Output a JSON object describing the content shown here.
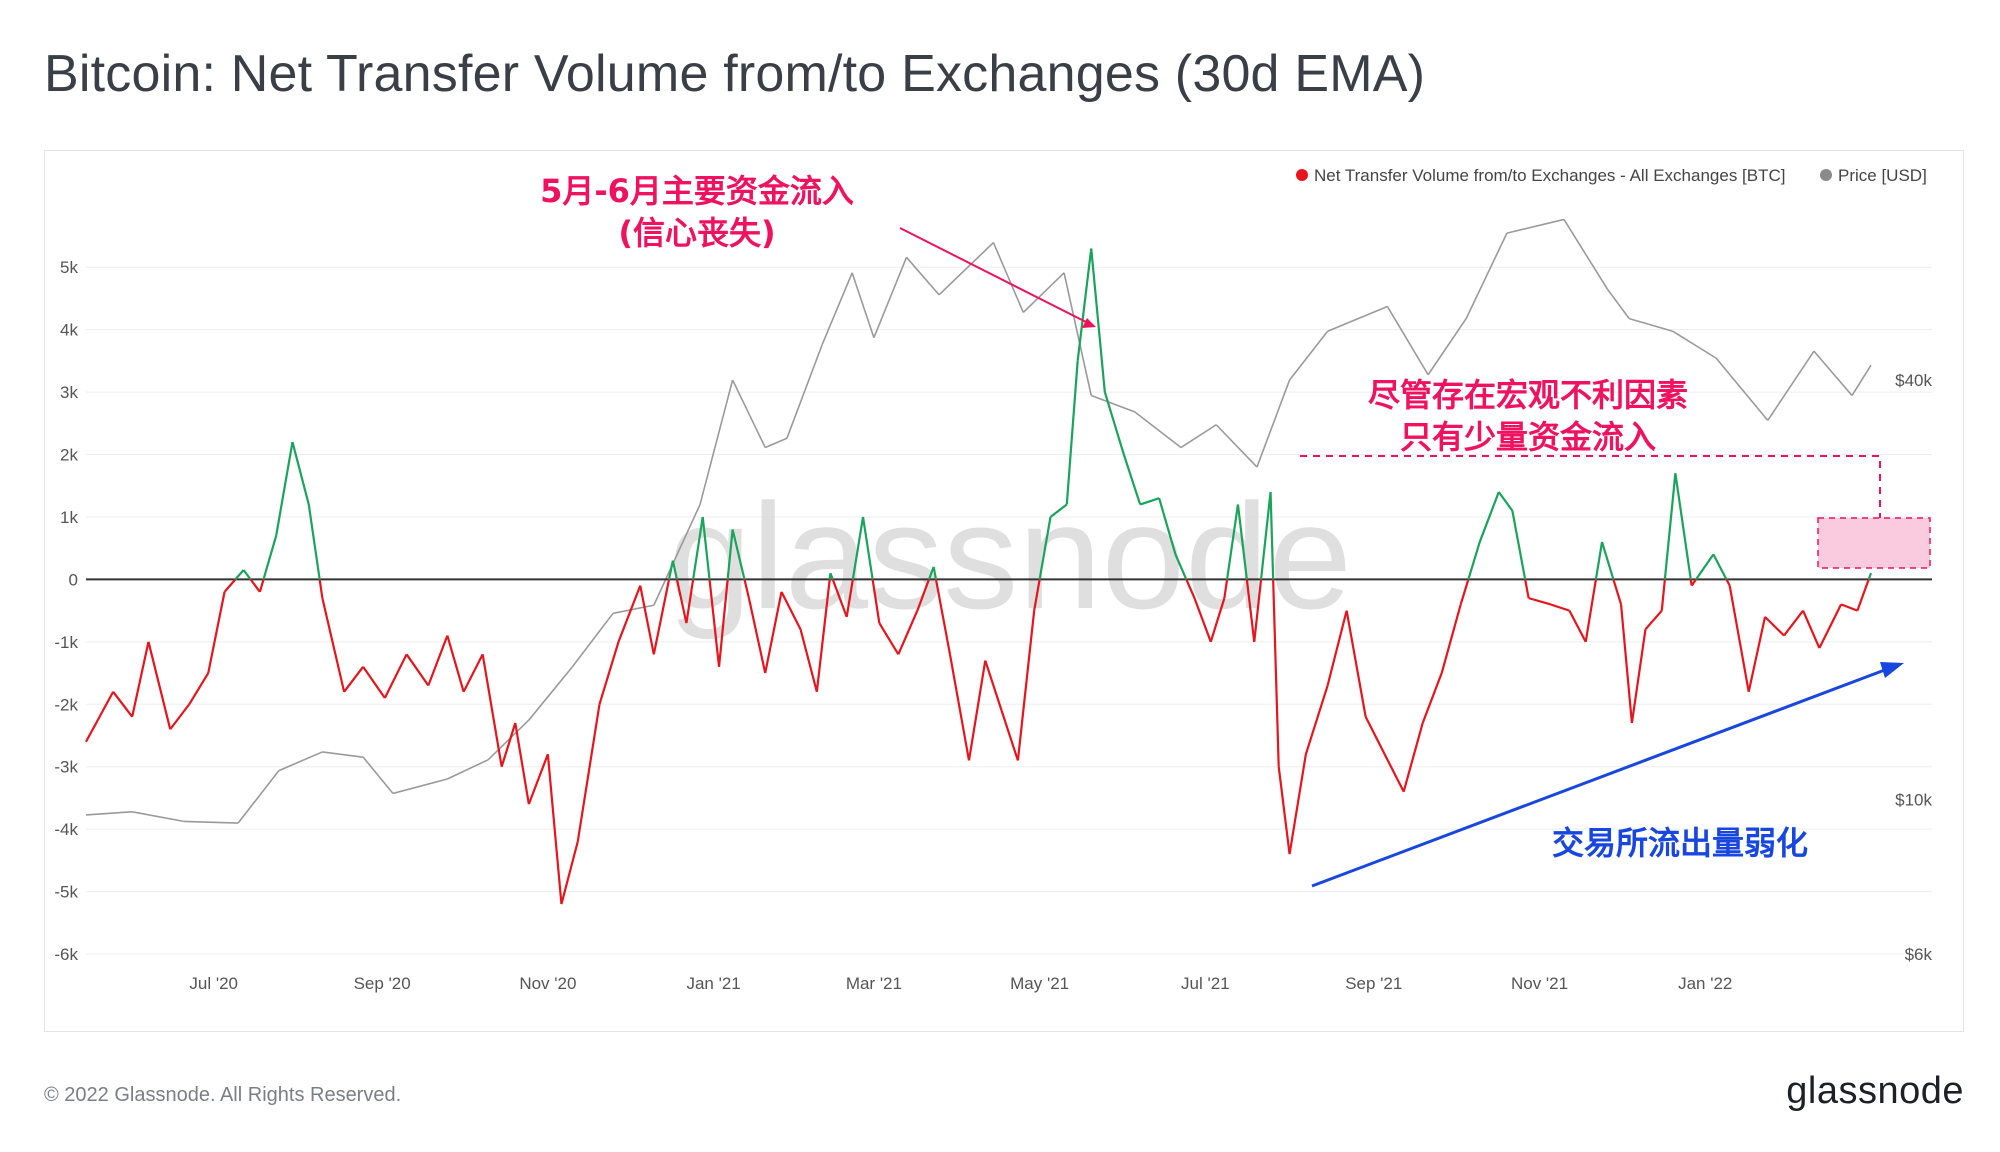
{
  "title": "Bitcoin: Net Transfer Volume from/to Exchanges (30d EMA)",
  "footer": "© 2022 Glassnode. All Rights Reserved.",
  "brand": "glassnode",
  "watermark": "glassnode",
  "colors": {
    "inflow": "#e8141c",
    "outflow": "#1aa35a",
    "price": "#9a9a9a",
    "pink_annotation": "#f0115f",
    "blue_annotation": "#1846e0",
    "zero_line": "#333333"
  },
  "annotations": {
    "top_line1": "5月-6月主要资金流入",
    "top_line2": "(信心丧失)",
    "right_line1": "尽管存在宏观不利因素",
    "right_line2": "只有少量资金流入",
    "bottom": "交易所流出量弱化"
  },
  "chart_data": {
    "type": "line",
    "legend_position": "top-right",
    "grid": "horizontal",
    "legend": [
      {
        "label": "Net Transfer Volume from/to Exchanges - All Exchanges [BTC]",
        "color": "#e8141c"
      },
      {
        "label": "Price [USD]",
        "color": "#8a8a8a"
      }
    ],
    "y_left": {
      "range": [
        -6000,
        5500
      ],
      "ticks": [
        5000,
        4000,
        3000,
        2000,
        1000,
        0,
        -1000,
        -2000,
        -3000,
        -4000,
        -5000,
        -6000
      ],
      "tick_labels": [
        "5k",
        "4k",
        "3k",
        "2k",
        "1k",
        "0",
        "-1k",
        "-2k",
        "-3k",
        "-4k",
        "-5k",
        "-6k"
      ]
    },
    "y_right": {
      "scale": "log",
      "ticks": [
        40000,
        10000,
        6000
      ],
      "tick_labels": [
        "$40k",
        "$10k",
        "$6k"
      ]
    },
    "x_ticks": [
      "Jul '20",
      "Sep '20",
      "Nov '20",
      "Jan '21",
      "Mar '21",
      "May '21",
      "Jul '21",
      "Sep '21",
      "Nov '21",
      "Jan '22"
    ],
    "x_range": [
      "2020-05-15",
      "2022-03-10"
    ],
    "series": [
      {
        "name": "Net Transfer Volume from/to Exchanges - All Exchanges [BTC]",
        "axis": "left",
        "points": [
          [
            "2020-05-15",
            -2600
          ],
          [
            "2020-05-25",
            -1800
          ],
          [
            "2020-06-01",
            -2200
          ],
          [
            "2020-06-07",
            -1000
          ],
          [
            "2020-06-15",
            -2400
          ],
          [
            "2020-06-22",
            -2000
          ],
          [
            "2020-06-29",
            -1500
          ],
          [
            "2020-07-05",
            -200
          ],
          [
            "2020-07-12",
            150
          ],
          [
            "2020-07-18",
            -200
          ],
          [
            "2020-07-24",
            700
          ],
          [
            "2020-07-30",
            2200
          ],
          [
            "2020-08-05",
            1200
          ],
          [
            "2020-08-10",
            -300
          ],
          [
            "2020-08-18",
            -1800
          ],
          [
            "2020-08-25",
            -1400
          ],
          [
            "2020-09-02",
            -1900
          ],
          [
            "2020-09-10",
            -1200
          ],
          [
            "2020-09-18",
            -1700
          ],
          [
            "2020-09-25",
            -900
          ],
          [
            "2020-10-01",
            -1800
          ],
          [
            "2020-10-08",
            -1200
          ],
          [
            "2020-10-15",
            -3000
          ],
          [
            "2020-10-20",
            -2300
          ],
          [
            "2020-10-25",
            -3600
          ],
          [
            "2020-11-01",
            -2800
          ],
          [
            "2020-11-06",
            -5200
          ],
          [
            "2020-11-12",
            -4200
          ],
          [
            "2020-11-20",
            -2000
          ],
          [
            "2020-11-27",
            -1000
          ],
          [
            "2020-12-05",
            -100
          ],
          [
            "2020-12-10",
            -1200
          ],
          [
            "2020-12-17",
            300
          ],
          [
            "2020-12-22",
            -700
          ],
          [
            "2020-12-28",
            1000
          ],
          [
            "2021-01-03",
            -1400
          ],
          [
            "2021-01-08",
            800
          ],
          [
            "2021-01-14",
            -300
          ],
          [
            "2021-01-20",
            -1500
          ],
          [
            "2021-01-26",
            -200
          ],
          [
            "2021-02-02",
            -800
          ],
          [
            "2021-02-08",
            -1800
          ],
          [
            "2021-02-13",
            100
          ],
          [
            "2021-02-19",
            -600
          ],
          [
            "2021-02-25",
            1000
          ],
          [
            "2021-03-03",
            -700
          ],
          [
            "2021-03-10",
            -1200
          ],
          [
            "2021-03-17",
            -500
          ],
          [
            "2021-03-23",
            200
          ],
          [
            "2021-03-29",
            -1200
          ],
          [
            "2021-04-05",
            -2900
          ],
          [
            "2021-04-11",
            -1300
          ],
          [
            "2021-04-17",
            -2100
          ],
          [
            "2021-04-23",
            -2900
          ],
          [
            "2021-04-29",
            -500
          ],
          [
            "2021-05-05",
            1000
          ],
          [
            "2021-05-11",
            1200
          ],
          [
            "2021-05-15",
            3500
          ],
          [
            "2021-05-20",
            5300
          ],
          [
            "2021-05-25",
            3000
          ],
          [
            "2021-06-01",
            2000
          ],
          [
            "2021-06-07",
            1200
          ],
          [
            "2021-06-14",
            1300
          ],
          [
            "2021-06-20",
            400
          ],
          [
            "2021-06-27",
            -300
          ],
          [
            "2021-07-03",
            -1000
          ],
          [
            "2021-07-08",
            -300
          ],
          [
            "2021-07-13",
            1200
          ],
          [
            "2021-07-19",
            -1000
          ],
          [
            "2021-07-25",
            1400
          ],
          [
            "2021-07-28",
            -3000
          ],
          [
            "2021-08-01",
            -4400
          ],
          [
            "2021-08-07",
            -2800
          ],
          [
            "2021-08-15",
            -1700
          ],
          [
            "2021-08-22",
            -500
          ],
          [
            "2021-08-29",
            -2200
          ],
          [
            "2021-09-05",
            -2800
          ],
          [
            "2021-09-12",
            -3400
          ],
          [
            "2021-09-19",
            -2300
          ],
          [
            "2021-09-26",
            -1500
          ],
          [
            "2021-10-03",
            -400
          ],
          [
            "2021-10-10",
            600
          ],
          [
            "2021-10-17",
            1400
          ],
          [
            "2021-10-22",
            1100
          ],
          [
            "2021-10-28",
            -300
          ],
          [
            "2021-11-05",
            -400
          ],
          [
            "2021-11-12",
            -500
          ],
          [
            "2021-11-18",
            -1000
          ],
          [
            "2021-11-24",
            600
          ],
          [
            "2021-12-01",
            -400
          ],
          [
            "2021-12-05",
            -2300
          ],
          [
            "2021-12-10",
            -800
          ],
          [
            "2021-12-16",
            -500
          ],
          [
            "2021-12-21",
            1700
          ],
          [
            "2021-12-27",
            -100
          ],
          [
            "2022-01-04",
            400
          ],
          [
            "2022-01-10",
            -100
          ],
          [
            "2022-01-17",
            -1800
          ],
          [
            "2022-01-23",
            -600
          ],
          [
            "2022-01-30",
            -900
          ],
          [
            "2022-02-06",
            -500
          ],
          [
            "2022-02-12",
            -1100
          ],
          [
            "2022-02-20",
            -400
          ],
          [
            "2022-02-26",
            -500
          ],
          [
            "2022-03-03",
            100
          ]
        ]
      },
      {
        "name": "Price [USD]",
        "axis": "right",
        "points": [
          [
            "2020-05-15",
            9500
          ],
          [
            "2020-06-01",
            9600
          ],
          [
            "2020-06-20",
            9300
          ],
          [
            "2020-07-10",
            9250
          ],
          [
            "2020-07-25",
            11000
          ],
          [
            "2020-08-10",
            11700
          ],
          [
            "2020-08-25",
            11500
          ],
          [
            "2020-09-05",
            10200
          ],
          [
            "2020-09-25",
            10700
          ],
          [
            "2020-10-10",
            11400
          ],
          [
            "2020-10-25",
            13000
          ],
          [
            "2020-11-10",
            15500
          ],
          [
            "2020-11-25",
            18500
          ],
          [
            "2020-12-10",
            19000
          ],
          [
            "2020-12-27",
            26500
          ],
          [
            "2021-01-08",
            40000
          ],
          [
            "2021-01-20",
            32000
          ],
          [
            "2021-01-28",
            33000
          ],
          [
            "2021-02-10",
            45000
          ],
          [
            "2021-02-21",
            57000
          ],
          [
            "2021-03-01",
            46000
          ],
          [
            "2021-03-13",
            60000
          ],
          [
            "2021-03-25",
            53000
          ],
          [
            "2021-04-14",
            63000
          ],
          [
            "2021-04-25",
            50000
          ],
          [
            "2021-05-10",
            57000
          ],
          [
            "2021-05-20",
            38000
          ],
          [
            "2021-06-05",
            36000
          ],
          [
            "2021-06-22",
            32000
          ],
          [
            "2021-07-05",
            34500
          ],
          [
            "2021-07-20",
            30000
          ],
          [
            "2021-08-01",
            40000
          ],
          [
            "2021-08-15",
            47000
          ],
          [
            "2021-09-06",
            51000
          ],
          [
            "2021-09-21",
            40700
          ],
          [
            "2021-10-05",
            49000
          ],
          [
            "2021-10-20",
            65000
          ],
          [
            "2021-11-10",
            68000
          ],
          [
            "2021-11-26",
            54000
          ],
          [
            "2021-12-04",
            49000
          ],
          [
            "2021-12-20",
            47000
          ],
          [
            "2022-01-05",
            43000
          ],
          [
            "2022-01-24",
            35000
          ],
          [
            "2022-02-10",
            44000
          ],
          [
            "2022-02-24",
            38000
          ],
          [
            "2022-03-03",
            42000
          ]
        ]
      }
    ]
  }
}
